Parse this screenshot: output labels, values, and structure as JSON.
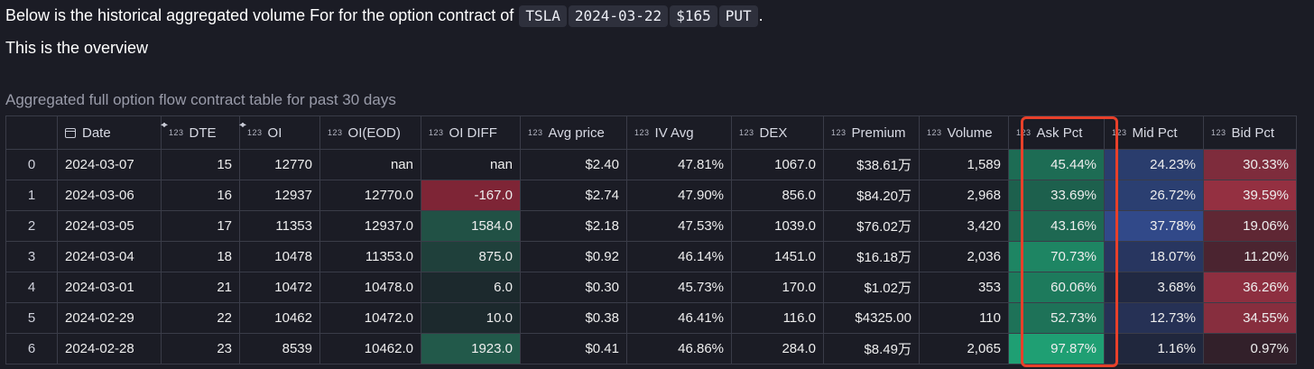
{
  "intro": {
    "prefix": "Below is the historical aggregated volume For for the option contract of",
    "ticker": "TSLA",
    "expiry": "2024-03-22",
    "strike": "$165",
    "type": "PUT",
    "suffix": "."
  },
  "overview": "This is the overview",
  "caption": "Aggregated full option flow contract table for past 30 days",
  "table": {
    "type_tag": "123",
    "columns": [
      "Date",
      "DTE",
      "OI",
      "OI(EOD)",
      "OI DIFF",
      "Avg price",
      "IV Avg",
      "DEX",
      "Premium",
      "Volume",
      "Ask Pct",
      "Mid Pct",
      "Bid Pct"
    ],
    "rows": [
      {
        "idx": "0",
        "date": "2024-03-07",
        "dte": "15",
        "oi": "12770",
        "oi_eod": "nan",
        "oi_diff": "nan",
        "avg_price": "$2.40",
        "iv_avg": "47.81%",
        "dex": "1067.0",
        "premium": "$38.61万",
        "volume": "1,589",
        "ask_pct": "45.44%",
        "mid_pct": "24.23%",
        "bid_pct": "30.33%"
      },
      {
        "idx": "1",
        "date": "2024-03-06",
        "dte": "16",
        "oi": "12937",
        "oi_eod": "12770.0",
        "oi_diff": "-167.0",
        "avg_price": "$2.74",
        "iv_avg": "47.90%",
        "dex": "856.0",
        "premium": "$84.20万",
        "volume": "2,968",
        "ask_pct": "33.69%",
        "mid_pct": "26.72%",
        "bid_pct": "39.59%"
      },
      {
        "idx": "2",
        "date": "2024-03-05",
        "dte": "17",
        "oi": "11353",
        "oi_eod": "12937.0",
        "oi_diff": "1584.0",
        "avg_price": "$2.18",
        "iv_avg": "47.53%",
        "dex": "1039.0",
        "premium": "$76.02万",
        "volume": "3,420",
        "ask_pct": "43.16%",
        "mid_pct": "37.78%",
        "bid_pct": "19.06%"
      },
      {
        "idx": "3",
        "date": "2024-03-04",
        "dte": "18",
        "oi": "10478",
        "oi_eod": "11353.0",
        "oi_diff": "875.0",
        "avg_price": "$0.92",
        "iv_avg": "46.14%",
        "dex": "1451.0",
        "premium": "$16.18万",
        "volume": "2,036",
        "ask_pct": "70.73%",
        "mid_pct": "18.07%",
        "bid_pct": "11.20%"
      },
      {
        "idx": "4",
        "date": "2024-03-01",
        "dte": "21",
        "oi": "10472",
        "oi_eod": "10478.0",
        "oi_diff": "6.0",
        "avg_price": "$0.30",
        "iv_avg": "45.73%",
        "dex": "170.0",
        "premium": "$1.02万",
        "volume": "353",
        "ask_pct": "60.06%",
        "mid_pct": "3.68%",
        "bid_pct": "36.26%"
      },
      {
        "idx": "5",
        "date": "2024-02-29",
        "dte": "22",
        "oi": "10462",
        "oi_eod": "10472.0",
        "oi_diff": "10.0",
        "avg_price": "$0.38",
        "iv_avg": "46.41%",
        "dex": "116.0",
        "premium": "$4325.00",
        "volume": "110",
        "ask_pct": "52.73%",
        "mid_pct": "12.73%",
        "bid_pct": "34.55%"
      },
      {
        "idx": "6",
        "date": "2024-02-28",
        "dte": "23",
        "oi": "8539",
        "oi_eod": "10462.0",
        "oi_diff": "1923.0",
        "avg_price": "$0.41",
        "iv_avg": "46.86%",
        "dex": "284.0",
        "premium": "$8.49万",
        "volume": "2,065",
        "ask_pct": "97.87%",
        "mid_pct": "1.16%",
        "bid_pct": "0.97%"
      }
    ]
  },
  "colors": {
    "background": "#1b1c25",
    "highlight_border": "#e8402a",
    "ask_green": "#1e9a74",
    "mid_blue": "#3a5aa8",
    "bid_red": "#b33a4c",
    "oi_diff_positive": "#2a7a5c",
    "oi_diff_negative": "#9a2c3c"
  }
}
